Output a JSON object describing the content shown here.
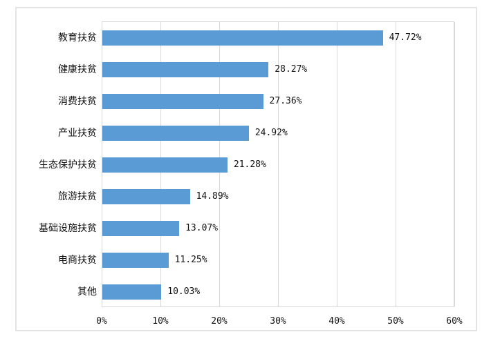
{
  "chart_data": {
    "type": "bar",
    "orientation": "horizontal",
    "title": "",
    "xlabel": "",
    "ylabel": "",
    "categories": [
      "教育扶贫",
      "健康扶贫",
      "消费扶贫",
      "产业扶贫",
      "生态保护扶贫",
      "旅游扶贫",
      "基础设施扶贫",
      "电商扶贫",
      "其他"
    ],
    "values": [
      47.72,
      28.27,
      27.36,
      24.92,
      21.28,
      14.89,
      13.07,
      11.25,
      10.03
    ],
    "value_labels": [
      "47.72%",
      "28.27%",
      "27.36%",
      "24.92%",
      "21.28%",
      "14.89%",
      "13.07%",
      "11.25%",
      "10.03%"
    ],
    "x_ticks": [
      "0%",
      "10%",
      "20%",
      "30%",
      "40%",
      "50%",
      "60%"
    ],
    "x_tick_values": [
      0,
      10,
      20,
      30,
      40,
      50,
      60
    ],
    "xlim": [
      0,
      60
    ],
    "grid": "vertical",
    "legend": "none"
  },
  "colors": {
    "bar": "#5B9BD5",
    "gridline": "#D9D9D9",
    "plot_border": "#D6D6D6",
    "panel_border": "#E4E4E4",
    "text": "#111111",
    "background": "#FFFFFF"
  }
}
